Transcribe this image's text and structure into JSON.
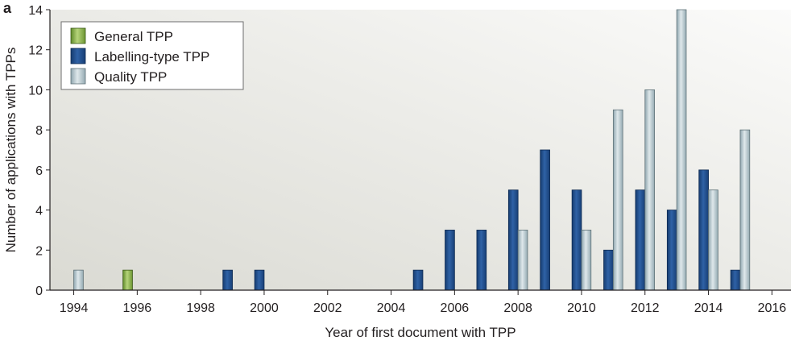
{
  "panel_label": "a",
  "chart_data": {
    "type": "bar",
    "title": "",
    "xlabel": "Year of first document with TPP",
    "ylabel": "Number of applications with TPPs",
    "xlim": [
      1993.25,
      2016.6
    ],
    "ylim": [
      0,
      14
    ],
    "x_ticks": [
      1994,
      1996,
      1998,
      2000,
      2002,
      2004,
      2006,
      2008,
      2010,
      2012,
      2014,
      2016
    ],
    "y_ticks": [
      0,
      2,
      4,
      6,
      8,
      10,
      12,
      14
    ],
    "grid": false,
    "legend_position": "top-left",
    "series": [
      {
        "name": "General TPP",
        "color": "#7aa23c",
        "points": [
          {
            "x": 1995.7,
            "y": 1
          }
        ]
      },
      {
        "name": "Labelling-type TPP",
        "color": "#1f4e8c",
        "points": [
          {
            "x": 1999,
            "y": 1
          },
          {
            "x": 2000,
            "y": 1
          },
          {
            "x": 2005,
            "y": 1
          },
          {
            "x": 2006,
            "y": 3
          },
          {
            "x": 2007,
            "y": 3
          },
          {
            "x": 2008,
            "y": 5
          },
          {
            "x": 2009,
            "y": 7
          },
          {
            "x": 2010,
            "y": 5
          },
          {
            "x": 2011,
            "y": 2
          },
          {
            "x": 2012,
            "y": 5
          },
          {
            "x": 2013,
            "y": 4
          },
          {
            "x": 2014,
            "y": 6
          },
          {
            "x": 2015,
            "y": 1
          }
        ]
      },
      {
        "name": "Quality TPP",
        "color": "#a7bcc4",
        "points": [
          {
            "x": 1994,
            "y": 1
          },
          {
            "x": 2008,
            "y": 3
          },
          {
            "x": 2010,
            "y": 3
          },
          {
            "x": 2011,
            "y": 9
          },
          {
            "x": 2012,
            "y": 10
          },
          {
            "x": 2013,
            "y": 14
          },
          {
            "x": 2014,
            "y": 5
          },
          {
            "x": 2015,
            "y": 8
          }
        ]
      }
    ]
  }
}
